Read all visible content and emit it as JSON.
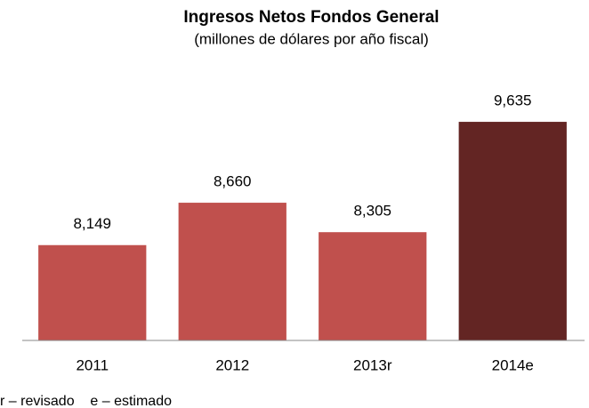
{
  "chart_data": {
    "type": "bar",
    "title": "Ingresos Netos Fondos General",
    "subtitle": "(millones de dólares por año fiscal)",
    "categories": [
      "2011",
      "2012",
      "2013r",
      "2014e"
    ],
    "values": [
      8149,
      8660,
      8305,
      9635
    ],
    "value_labels": [
      "8,149",
      "8,660",
      "8,305",
      "9,635"
    ],
    "colors": [
      "#c0504d",
      "#c0504d",
      "#c0504d",
      "#632523"
    ],
    "ylim": [
      7000,
      10000
    ],
    "footnote": "r – revisado    e – estimado"
  }
}
